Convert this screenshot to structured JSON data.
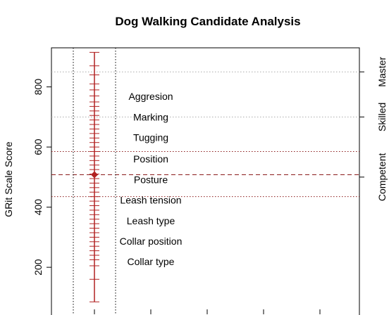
{
  "chart_data": {
    "type": "scatter",
    "title": "Dog Walking Candidate Analysis",
    "ylabel": "GRit Scale Score",
    "ylim": [
      60,
      930
    ],
    "y_ticks": [
      200,
      400,
      600,
      800
    ],
    "right_axis_levels": [
      {
        "label": "Competent",
        "value": 500
      },
      {
        "label": "Skilled",
        "value": 700
      },
      {
        "label": "Master",
        "value": 850
      }
    ],
    "reference_lines": [
      {
        "value": 850,
        "style": "dotted",
        "color": "#aaaaaa"
      },
      {
        "value": 700,
        "style": "dotted",
        "color": "#aaaaaa"
      },
      {
        "value": 585,
        "style": "dotted",
        "color": "#8b1a1a"
      },
      {
        "value": 508,
        "style": "dashed",
        "color": "#8b1a1a"
      },
      {
        "value": 435,
        "style": "dotted",
        "color": "#8b1a1a"
      }
    ],
    "candidate": {
      "estimate": 508,
      "range": [
        85,
        915
      ],
      "color": "#b22222",
      "tick_values": [
        85,
        160,
        205,
        225,
        240,
        255,
        270,
        285,
        300,
        315,
        330,
        345,
        360,
        375,
        390,
        405,
        420,
        435,
        450,
        465,
        480,
        495,
        510,
        525,
        540,
        555,
        570,
        585,
        600,
        615,
        630,
        645,
        660,
        675,
        690,
        705,
        720,
        735,
        750,
        770,
        790,
        810,
        840,
        870,
        915
      ]
    },
    "items": [
      {
        "label": "Aggresion",
        "value": 769
      },
      {
        "label": "Marking",
        "value": 700
      },
      {
        "label": "Tugging",
        "value": 632
      },
      {
        "label": "Position",
        "value": 561
      },
      {
        "label": "Posture",
        "value": 492
      },
      {
        "label": "Leash tension",
        "value": 424
      },
      {
        "label": "Leash type",
        "value": 355
      },
      {
        "label": "Collar position",
        "value": 287
      },
      {
        "label": "Collar type",
        "value": 219
      }
    ]
  }
}
